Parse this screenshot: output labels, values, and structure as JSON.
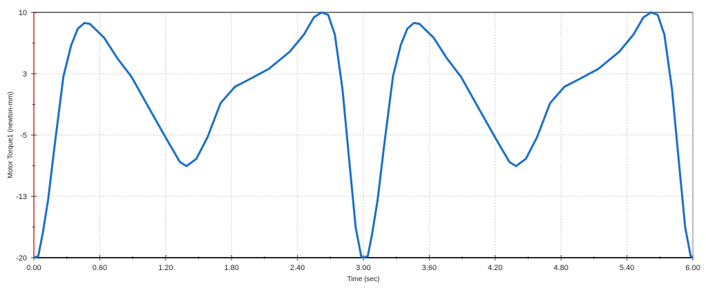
{
  "chart_data": {
    "type": "line",
    "title": "",
    "xlabel": "Time (sec)",
    "ylabel": "Motor Torque1 (newton-mm)",
    "xlim": [
      0,
      6
    ],
    "ylim": [
      -20,
      10
    ],
    "xticks": [
      0,
      0.6,
      1.2,
      1.8,
      2.4,
      3.0,
      3.6,
      4.2,
      4.8,
      5.4,
      6.0
    ],
    "xtick_labels": [
      "0.00",
      "0.60",
      "1.20",
      "1.80",
      "2.40",
      "3.00",
      "3.60",
      "4.20",
      "4.80",
      "5.40",
      "6.00"
    ],
    "yticks": [
      10,
      2.5,
      -5,
      -12.5,
      -20
    ],
    "ytick_labels": [
      "10",
      "3",
      "-5",
      "-13",
      "-20"
    ],
    "grid": true,
    "line_color": "#1a6fc9",
    "series": [
      {
        "points": [
          [
            0,
            -20
          ],
          [
            0.04,
            -19.8
          ],
          [
            0.08,
            -17.1
          ],
          [
            0.13,
            -12.9
          ],
          [
            0.19,
            -6.2
          ],
          [
            0.27,
            2.2
          ],
          [
            0.34,
            6.0
          ],
          [
            0.4,
            8.0
          ],
          [
            0.46,
            8.7
          ],
          [
            0.51,
            8.6
          ],
          [
            0.64,
            6.9
          ],
          [
            0.76,
            4.4
          ],
          [
            0.89,
            2.1
          ],
          [
            1.04,
            -1.5
          ],
          [
            1.2,
            -5.3
          ],
          [
            1.33,
            -8.3
          ],
          [
            1.39,
            -8.8
          ],
          [
            1.48,
            -7.9
          ],
          [
            1.58,
            -5.3
          ],
          [
            1.7,
            -1.1
          ],
          [
            1.83,
            0.9
          ],
          [
            1.96,
            1.8
          ],
          [
            2.14,
            3.1
          ],
          [
            2.33,
            5.2
          ],
          [
            2.46,
            7.3
          ],
          [
            2.55,
            9.4
          ],
          [
            2.62,
            10
          ],
          [
            2.68,
            9.7
          ],
          [
            2.74,
            7.3
          ],
          [
            2.81,
            0.6
          ],
          [
            2.87,
            -7.9
          ],
          [
            2.93,
            -16.3
          ],
          [
            2.98,
            -19.8
          ],
          [
            3.0,
            -20
          ],
          [
            3.04,
            -19.8
          ],
          [
            3.08,
            -17.1
          ],
          [
            3.13,
            -12.9
          ],
          [
            3.19,
            -6.2
          ],
          [
            3.27,
            2.2
          ],
          [
            3.34,
            6.0
          ],
          [
            3.4,
            8.0
          ],
          [
            3.46,
            8.7
          ],
          [
            3.51,
            8.6
          ],
          [
            3.64,
            6.9
          ],
          [
            3.76,
            4.4
          ],
          [
            3.89,
            2.1
          ],
          [
            4.04,
            -1.5
          ],
          [
            4.2,
            -5.3
          ],
          [
            4.33,
            -8.3
          ],
          [
            4.39,
            -8.8
          ],
          [
            4.48,
            -7.9
          ],
          [
            4.58,
            -5.3
          ],
          [
            4.7,
            -1.1
          ],
          [
            4.83,
            0.9
          ],
          [
            4.96,
            1.8
          ],
          [
            5.14,
            3.1
          ],
          [
            5.33,
            5.2
          ],
          [
            5.46,
            7.3
          ],
          [
            5.55,
            9.4
          ],
          [
            5.62,
            10
          ],
          [
            5.68,
            9.7
          ],
          [
            5.74,
            7.3
          ],
          [
            5.81,
            0.6
          ],
          [
            5.87,
            -7.9
          ],
          [
            5.93,
            -16.3
          ],
          [
            5.98,
            -19.8
          ],
          [
            6.0,
            -20
          ]
        ]
      }
    ]
  }
}
